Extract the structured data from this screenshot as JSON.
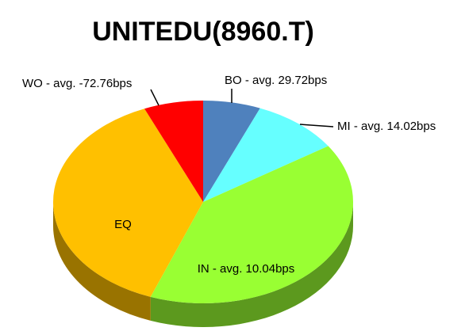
{
  "chart_data": {
    "type": "pie3d",
    "title": "UNITEDU(8960.T)",
    "categories": [
      "BO - avg. 29.72bps",
      "MI - avg. 14.02bps",
      "IN - avg. 10.04bps",
      "EQ",
      "WO - avg. -72.76bps"
    ],
    "values": [
      6.2,
      9.5,
      40,
      37.9,
      6.4
    ],
    "colors": [
      "#4f81bd",
      "#66ffff",
      "#99ff33",
      "#ffc000",
      "#ff0000"
    ]
  }
}
